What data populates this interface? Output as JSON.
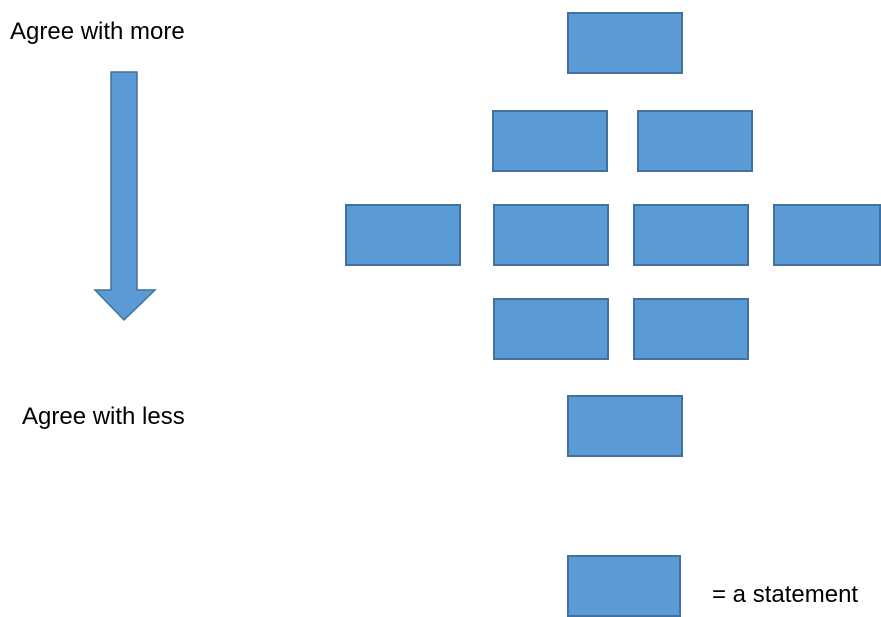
{
  "labels": {
    "agree_more": "Agree with more",
    "agree_less": "Agree with less",
    "legend": "= a statement"
  },
  "colors": {
    "card_fill": "#5B9BD5",
    "card_border": "#41719C",
    "arrow_fill": "#5B9BD5",
    "arrow_border": "#41719C"
  },
  "grid": {
    "rows": [
      {
        "count": 1
      },
      {
        "count": 2
      },
      {
        "count": 4
      },
      {
        "count": 2
      },
      {
        "count": 1
      }
    ]
  }
}
